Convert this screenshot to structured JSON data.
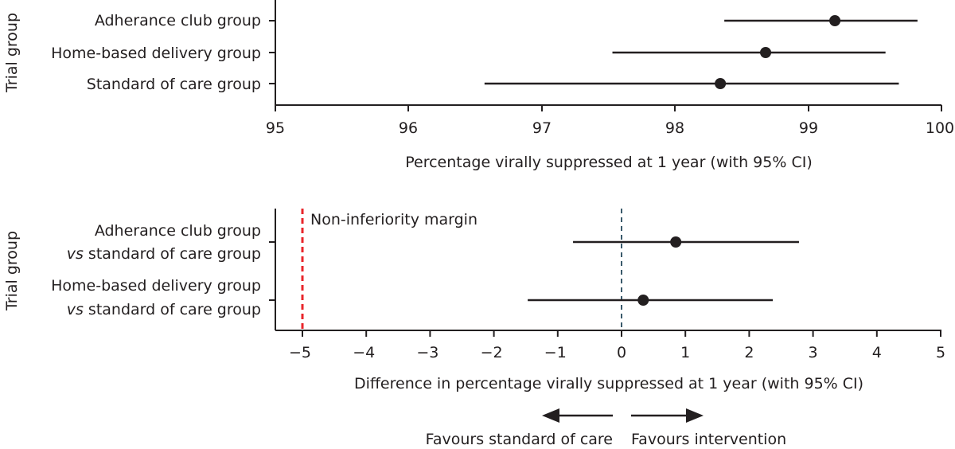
{
  "chart_data": [
    {
      "type": "forest",
      "title": "",
      "xlabel": "Percentage virally suppressed at 1 year (with 95% CI)",
      "ylabel": "Trial group",
      "xlim": [
        95,
        100
      ],
      "ticks": [
        "95",
        "96",
        "97",
        "98",
        "99",
        "100"
      ],
      "categories": [
        "Adherance club group",
        "Home-based delivery group",
        "Standard of care group"
      ],
      "estimates": [
        99.2,
        98.68,
        98.34
      ],
      "ci_low": [
        98.37,
        97.53,
        96.57
      ],
      "ci_high": [
        99.82,
        99.58,
        99.68
      ]
    },
    {
      "type": "forest",
      "title": "",
      "xlabel": "Difference in percentage virally suppressed at 1 year (with 95% CI)",
      "ylabel": "Trial group",
      "xlim": [
        -5.5,
        5
      ],
      "ticks": [
        "−5",
        "−4",
        "−3",
        "−2",
        "−1",
        "0",
        "1",
        "2",
        "3",
        "4",
        "5"
      ],
      "categories": [
        {
          "line1": "Adherance club group",
          "line2_prefix": "vs",
          "line2_rest": " standard of care group"
        },
        {
          "line1": "Home-based delivery group",
          "line2_prefix": "vs",
          "line2_rest": " standard of care group"
        }
      ],
      "estimates": [
        0.85,
        0.34
      ],
      "ci_low": [
        -0.76,
        -1.47
      ],
      "ci_high": [
        2.78,
        2.37
      ],
      "reference_line": 0,
      "non_inferiority_margin": -5,
      "margin_label": "Non-inferiority margin",
      "arrow_left_label": "Favours standard of care",
      "arrow_right_label": "Favours intervention",
      "colors": {
        "margin": "#e8262b",
        "reference": "#3a5a6b"
      }
    }
  ]
}
